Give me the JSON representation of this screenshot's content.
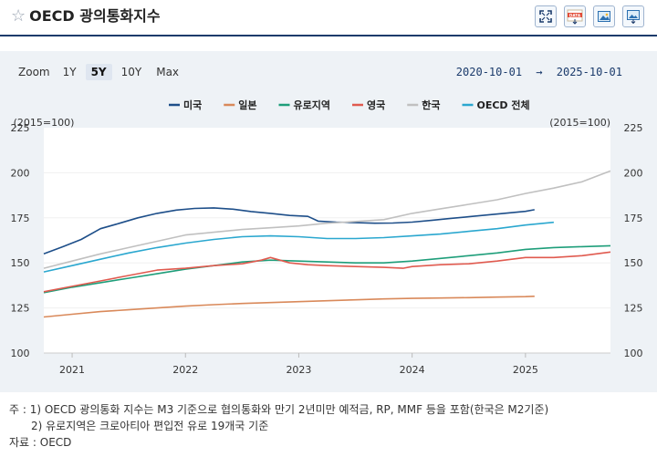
{
  "header": {
    "title": "OECD 광의통화지수",
    "star_icon": "star-icon",
    "tools": [
      {
        "name": "fullscreen-icon"
      },
      {
        "name": "data-download-icon",
        "label": "DATA"
      },
      {
        "name": "image-icon"
      },
      {
        "name": "image-download-icon"
      }
    ]
  },
  "controls": {
    "zoom_label": "Zoom",
    "zoom_options": [
      "1Y",
      "5Y",
      "10Y",
      "Max"
    ],
    "zoom_selected": "5Y",
    "date_from": "2020-10-01",
    "arrow": "→",
    "date_to": "2025-10-01"
  },
  "notes": {
    "line1": "주 : 1) OECD 광의통화 지수는 M3 기준으로 협의통화와 만기 2년미만 예적금, RP, MMF 등을 포함(한국은 M2기준)",
    "line2": "2) 유로지역은 크로아티아 편입전 유로 19개국 기준",
    "source": "자료 : OECD"
  },
  "chart_data": {
    "type": "line",
    "unit_left": "(2015=100)",
    "unit_right": "(2015=100)",
    "ylim": [
      100,
      225
    ],
    "yticks": [
      100,
      125,
      150,
      175,
      200,
      225
    ],
    "xlim": [
      2020.75,
      2025.75
    ],
    "xticks": [
      2021,
      2022,
      2023,
      2024,
      2025
    ],
    "xtick_labels": [
      "2021",
      "2022",
      "2023",
      "2024",
      "2025"
    ],
    "series": [
      {
        "name": "미국",
        "color": "#1d4e89",
        "x": [
          2020.75,
          2020.92,
          2021.08,
          2021.25,
          2021.42,
          2021.58,
          2021.75,
          2021.92,
          2022.08,
          2022.25,
          2022.42,
          2022.58,
          2022.75,
          2022.92,
          2023.08,
          2023.17,
          2023.33,
          2023.5,
          2023.67,
          2023.83,
          2024.0,
          2024.17,
          2024.33,
          2024.5,
          2024.67,
          2024.83,
          2025.0,
          2025.08
        ],
        "y": [
          155,
          159,
          163,
          169,
          172,
          175,
          177.5,
          179.3,
          180.2,
          180.5,
          179.8,
          178.5,
          177.5,
          176.3,
          175.8,
          173.2,
          172.6,
          172.3,
          172.0,
          172.1,
          172.6,
          173.6,
          174.6,
          175.6,
          176.6,
          177.6,
          178.6,
          179.5
        ]
      },
      {
        "name": "일본",
        "color": "#d9895a",
        "x": [
          2020.75,
          2021.0,
          2021.25,
          2021.5,
          2021.75,
          2022.0,
          2022.25,
          2022.5,
          2022.75,
          2023.0,
          2023.25,
          2023.5,
          2023.75,
          2024.0,
          2024.25,
          2024.5,
          2024.75,
          2025.0,
          2025.08
        ],
        "y": [
          120.0,
          121.5,
          123.0,
          124.0,
          125.0,
          126.0,
          126.8,
          127.5,
          128.0,
          128.5,
          129.0,
          129.5,
          130.0,
          130.3,
          130.5,
          130.7,
          131.0,
          131.3,
          131.5
        ]
      },
      {
        "name": "유로지역",
        "color": "#1e9e7a",
        "x": [
          2020.75,
          2021.0,
          2021.25,
          2021.5,
          2021.75,
          2022.0,
          2022.25,
          2022.5,
          2022.75,
          2023.0,
          2023.25,
          2023.5,
          2023.75,
          2024.0,
          2024.25,
          2024.5,
          2024.75,
          2025.0,
          2025.25,
          2025.5,
          2025.75
        ],
        "y": [
          133.5,
          136.5,
          139.0,
          141.5,
          144.0,
          146.5,
          148.5,
          150.5,
          151.5,
          151.0,
          150.5,
          150.0,
          150.0,
          151.0,
          152.5,
          154.0,
          155.5,
          157.5,
          158.5,
          159.0,
          159.5
        ]
      },
      {
        "name": "영국",
        "color": "#e05a4f",
        "x": [
          2020.75,
          2021.0,
          2021.25,
          2021.5,
          2021.75,
          2022.0,
          2022.25,
          2022.5,
          2022.67,
          2022.75,
          2022.92,
          2023.08,
          2023.25,
          2023.5,
          2023.75,
          2023.92,
          2024.0,
          2024.25,
          2024.5,
          2024.75,
          2025.0,
          2025.25,
          2025.5,
          2025.75
        ],
        "y": [
          134.0,
          137.0,
          140.0,
          143.0,
          146.0,
          147.0,
          148.5,
          149.5,
          151.5,
          153.0,
          150.0,
          149.0,
          148.5,
          148.0,
          147.5,
          147.0,
          148.0,
          149.0,
          149.5,
          151.0,
          153.0,
          153.0,
          154.0,
          156.0
        ]
      },
      {
        "name": "한국",
        "color": "#c0c0c0",
        "x": [
          2020.75,
          2021.0,
          2021.25,
          2021.5,
          2021.75,
          2022.0,
          2022.25,
          2022.5,
          2022.75,
          2023.0,
          2023.25,
          2023.5,
          2023.75,
          2024.0,
          2024.25,
          2024.5,
          2024.75,
          2025.0,
          2025.25,
          2025.5,
          2025.75
        ],
        "y": [
          147.0,
          151.0,
          155.0,
          158.5,
          162.0,
          165.5,
          167.0,
          168.5,
          169.5,
          170.5,
          172.0,
          173.0,
          174.0,
          177.5,
          180.0,
          182.5,
          185.0,
          188.5,
          191.5,
          195.0,
          201.0
        ]
      },
      {
        "name": "OECD 전체",
        "color": "#2aa7cf",
        "x": [
          2020.75,
          2021.0,
          2021.25,
          2021.5,
          2021.75,
          2022.0,
          2022.25,
          2022.5,
          2022.75,
          2023.0,
          2023.25,
          2023.5,
          2023.75,
          2024.0,
          2024.25,
          2024.5,
          2024.75,
          2025.0,
          2025.25
        ],
        "y": [
          145.0,
          148.5,
          152.0,
          155.5,
          158.5,
          161.0,
          163.0,
          164.5,
          165.0,
          164.5,
          163.5,
          163.5,
          164.0,
          165.0,
          166.0,
          167.5,
          169.0,
          171.0,
          172.5
        ]
      }
    ]
  }
}
